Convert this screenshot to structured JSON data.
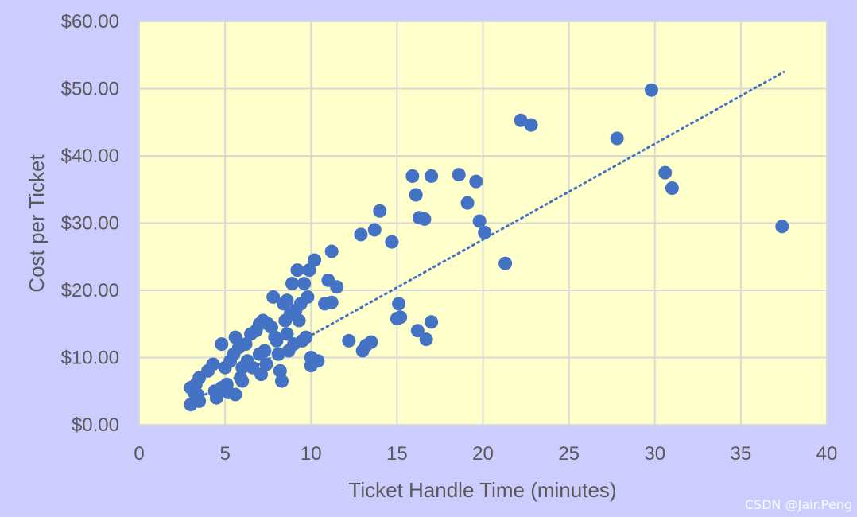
{
  "watermark": "CSDN @Jair.Peng",
  "colors": {
    "background": "#ccccff",
    "plot_area": "#ffffcc",
    "grid": "#d9d9d9",
    "marker": "#4472c4",
    "text": "#595959"
  },
  "chart_data": {
    "type": "scatter",
    "title": "",
    "xlabel": "Ticket Handle Time (minutes)",
    "ylabel": "Cost per Ticket",
    "xlim": [
      0,
      40
    ],
    "ylim": [
      0,
      60
    ],
    "x_ticks": [
      0,
      5,
      10,
      15,
      20,
      25,
      30,
      35,
      40
    ],
    "x_tick_labels": [
      "0",
      "5",
      "10",
      "15",
      "20",
      "25",
      "30",
      "35",
      "40"
    ],
    "y_ticks": [
      0,
      10,
      20,
      30,
      40,
      50,
      60
    ],
    "y_tick_labels": [
      "$0.00",
      "$10.00",
      "$20.00",
      "$30.00",
      "$40.00",
      "$50.00",
      "$60.00"
    ],
    "grid": true,
    "legend": false,
    "trendline": {
      "type": "linear",
      "style": "dotted",
      "from": [
        3,
        3.3
      ],
      "to": [
        37.5,
        52.5
      ]
    },
    "points": [
      [
        3.0,
        5.5
      ],
      [
        3.2,
        4.8
      ],
      [
        3.3,
        6.0
      ],
      [
        3.5,
        7.0
      ],
      [
        3.5,
        3.5
      ],
      [
        3.0,
        3.0
      ],
      [
        3.4,
        4.5
      ],
      [
        4.0,
        8.0
      ],
      [
        4.3,
        9.0
      ],
      [
        4.4,
        5.0
      ],
      [
        4.5,
        4.0
      ],
      [
        4.8,
        5.5
      ],
      [
        4.8,
        12.0
      ],
      [
        5.0,
        8.5
      ],
      [
        5.1,
        6.0
      ],
      [
        5.2,
        4.8
      ],
      [
        5.3,
        9.5
      ],
      [
        5.5,
        10.5
      ],
      [
        5.6,
        13.0
      ],
      [
        5.6,
        4.5
      ],
      [
        5.8,
        11.5
      ],
      [
        5.9,
        7.0
      ],
      [
        6.0,
        6.5
      ],
      [
        6.0,
        8.5
      ],
      [
        6.2,
        12.0
      ],
      [
        6.3,
        9.5
      ],
      [
        6.5,
        13.5
      ],
      [
        6.6,
        8.5
      ],
      [
        6.8,
        14.0
      ],
      [
        7.0,
        15.0
      ],
      [
        7.0,
        10.5
      ],
      [
        7.1,
        7.5
      ],
      [
        7.2,
        15.5
      ],
      [
        7.3,
        11.0
      ],
      [
        7.4,
        9.0
      ],
      [
        7.5,
        15.0
      ],
      [
        7.7,
        14.5
      ],
      [
        7.8,
        19.0
      ],
      [
        7.9,
        13.0
      ],
      [
        8.0,
        12.5
      ],
      [
        8.1,
        10.5
      ],
      [
        8.2,
        8.0
      ],
      [
        8.3,
        6.5
      ],
      [
        8.4,
        18.0
      ],
      [
        8.5,
        15.5
      ],
      [
        8.6,
        18.5
      ],
      [
        8.6,
        13.5
      ],
      [
        8.7,
        11.0
      ],
      [
        8.8,
        16.5
      ],
      [
        8.9,
        21.0
      ],
      [
        9.0,
        12.0
      ],
      [
        9.1,
        17.0
      ],
      [
        9.2,
        23.0
      ],
      [
        9.3,
        15.5
      ],
      [
        9.4,
        18.0
      ],
      [
        9.5,
        12.5
      ],
      [
        9.6,
        21.0
      ],
      [
        9.7,
        13.0
      ],
      [
        9.8,
        19.0
      ],
      [
        9.9,
        23.0
      ],
      [
        10.0,
        10.0
      ],
      [
        10.0,
        8.8
      ],
      [
        10.2,
        24.5
      ],
      [
        10.4,
        9.5
      ],
      [
        10.8,
        18.0
      ],
      [
        11.0,
        21.5
      ],
      [
        11.2,
        18.2
      ],
      [
        11.2,
        25.8
      ],
      [
        11.5,
        20.5
      ],
      [
        12.2,
        12.5
      ],
      [
        12.9,
        28.3
      ],
      [
        13.0,
        11.0
      ],
      [
        13.2,
        11.8
      ],
      [
        13.5,
        12.3
      ],
      [
        13.7,
        29.0
      ],
      [
        14.0,
        31.8
      ],
      [
        14.7,
        27.2
      ],
      [
        15.0,
        15.8
      ],
      [
        15.1,
        18.0
      ],
      [
        15.2,
        16.0
      ],
      [
        15.9,
        37.0
      ],
      [
        16.1,
        34.2
      ],
      [
        16.2,
        14.0
      ],
      [
        16.3,
        30.8
      ],
      [
        16.6,
        30.6
      ],
      [
        16.7,
        12.7
      ],
      [
        17.0,
        37.0
      ],
      [
        17.0,
        15.3
      ],
      [
        18.6,
        37.2
      ],
      [
        19.1,
        33.0
      ],
      [
        19.6,
        36.2
      ],
      [
        19.8,
        30.3
      ],
      [
        20.1,
        28.6
      ],
      [
        21.3,
        24.0
      ],
      [
        22.2,
        45.3
      ],
      [
        22.8,
        44.6
      ],
      [
        27.8,
        42.6
      ],
      [
        29.8,
        49.8
      ],
      [
        30.6,
        37.5
      ],
      [
        31.0,
        35.2
      ],
      [
        37.4,
        29.5
      ]
    ]
  }
}
